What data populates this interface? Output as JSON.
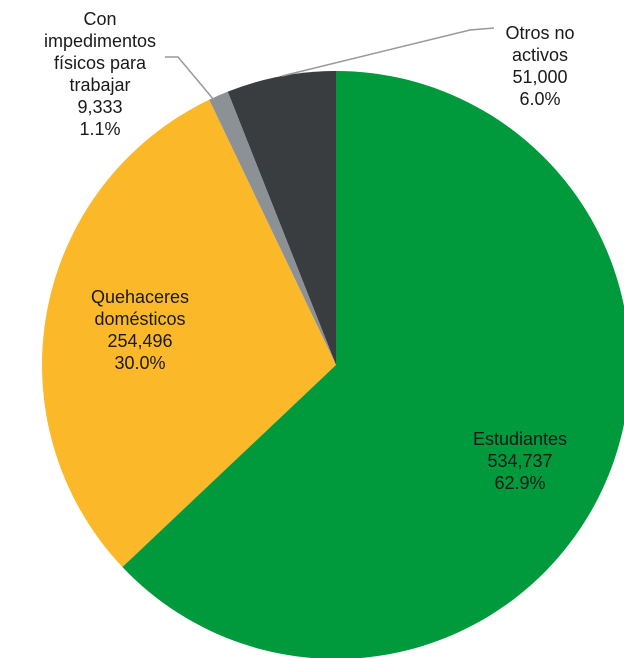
{
  "chart_data": {
    "type": "pie",
    "categories": [
      "Estudiantes",
      "Quehaceres domésticos",
      "Con impedimentos físicos para trabajar",
      "Otros no activos"
    ],
    "values": [
      534737,
      254496,
      9333,
      51000
    ],
    "value_labels": [
      "534,737",
      "254,496",
      "9,333",
      "51,000"
    ],
    "percentages": [
      62.9,
      30.0,
      1.1,
      6.0
    ],
    "percentage_labels": [
      "62.9%",
      "30.0%",
      "1.1%",
      "6.0%"
    ],
    "colors": [
      "#009a3d",
      "#fbb829",
      "#8c9196",
      "#3a3d40"
    ]
  }
}
